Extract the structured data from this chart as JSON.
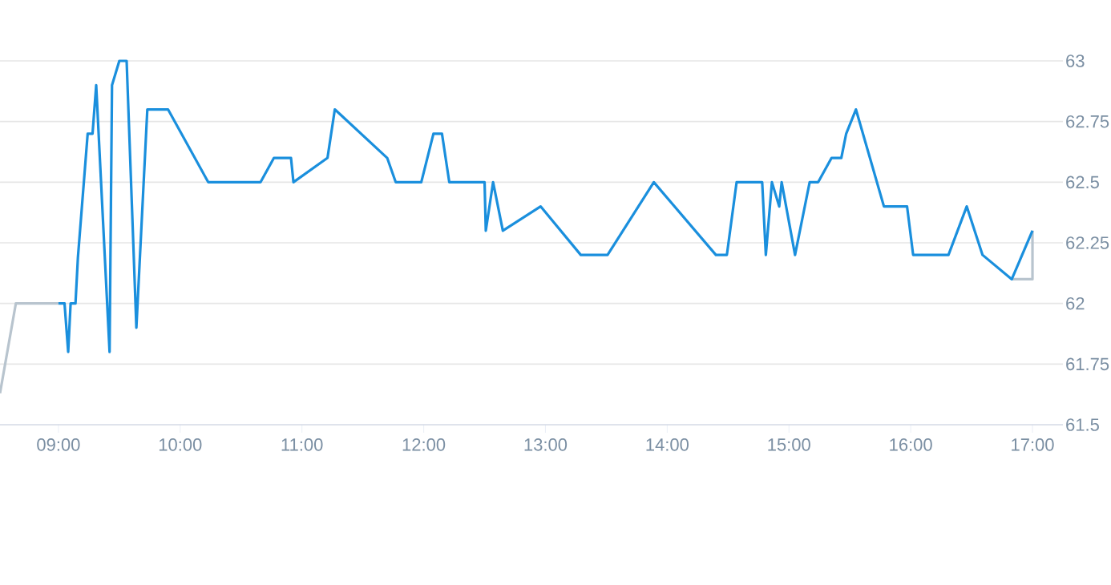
{
  "chart_data": {
    "type": "line",
    "xlim": [
      8.52,
      17.25
    ],
    "ylim": [
      61.5,
      63
    ],
    "xticks": [
      {
        "value": 9,
        "label": "09:00"
      },
      {
        "value": 10,
        "label": "10:00"
      },
      {
        "value": 11,
        "label": "11:00"
      },
      {
        "value": 12,
        "label": "12:00"
      },
      {
        "value": 13,
        "label": "13:00"
      },
      {
        "value": 14,
        "label": "14:00"
      },
      {
        "value": 15,
        "label": "15:00"
      },
      {
        "value": 16,
        "label": "16:00"
      },
      {
        "value": 17,
        "label": "17:00"
      }
    ],
    "yticks": [
      61.5,
      61.75,
      62,
      62.25,
      62.5,
      62.75,
      63
    ],
    "grid": "y",
    "legend": false,
    "marker": "none",
    "line_style": "solid",
    "series": [
      {
        "color": "#b8c4ce",
        "x": [
          8.52,
          8.65,
          9.0,
          null,
          16.83,
          17.0,
          17.0
        ],
        "values": [
          61.63,
          62.0,
          62.0,
          null,
          62.1,
          62.1,
          62.3
        ]
      },
      {
        "color": "#1a8fdd",
        "x": [
          9.0,
          9.05,
          9.08,
          9.1,
          9.14,
          9.16,
          9.24,
          9.28,
          9.31,
          9.42,
          9.44,
          9.5,
          9.56,
          9.64,
          9.73,
          9.9,
          10.23,
          10.66,
          10.77,
          10.91,
          10.93,
          11.21,
          11.27,
          11.7,
          11.77,
          11.98,
          12.08,
          12.15,
          12.21,
          12.5,
          12.51,
          12.57,
          12.65,
          12.96,
          13.29,
          13.51,
          13.89,
          14.4,
          14.49,
          14.57,
          14.78,
          14.81,
          14.86,
          14.92,
          14.94,
          15.05,
          15.17,
          15.24,
          15.35,
          15.43,
          15.47,
          15.55,
          15.78,
          15.97,
          16.02,
          16.31,
          16.46,
          16.59,
          16.83,
          17.0
        ],
        "values": [
          62.0,
          62.0,
          61.8,
          62.0,
          62.0,
          62.19,
          62.7,
          62.7,
          62.9,
          61.8,
          62.9,
          63.0,
          63.0,
          61.9,
          62.8,
          62.8,
          62.5,
          62.5,
          62.6,
          62.6,
          62.5,
          62.6,
          62.8,
          62.6,
          62.5,
          62.5,
          62.7,
          62.7,
          62.5,
          62.5,
          62.3,
          62.5,
          62.3,
          62.4,
          62.2,
          62.2,
          62.5,
          62.2,
          62.2,
          62.5,
          62.5,
          62.2,
          62.5,
          62.4,
          62.5,
          62.2,
          62.5,
          62.5,
          62.6,
          62.6,
          62.7,
          62.8,
          62.4,
          62.4,
          62.2,
          62.2,
          62.4,
          62.2,
          62.1,
          62.3
        ]
      }
    ]
  }
}
